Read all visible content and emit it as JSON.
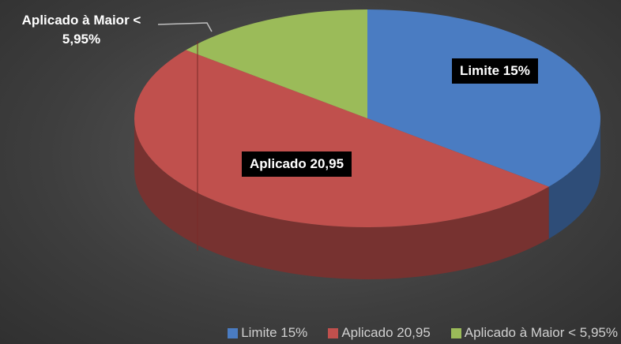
{
  "chart_data": {
    "type": "pie3d",
    "categories": [
      "Limite 15%",
      "Aplicado 20,95",
      "Aplicado à Maior < 5,95%"
    ],
    "values": [
      15,
      20.95,
      5.95
    ],
    "colors": [
      "#4a7cc2",
      "#c0504d",
      "#9bbb59"
    ],
    "legend": "bottom"
  }
}
